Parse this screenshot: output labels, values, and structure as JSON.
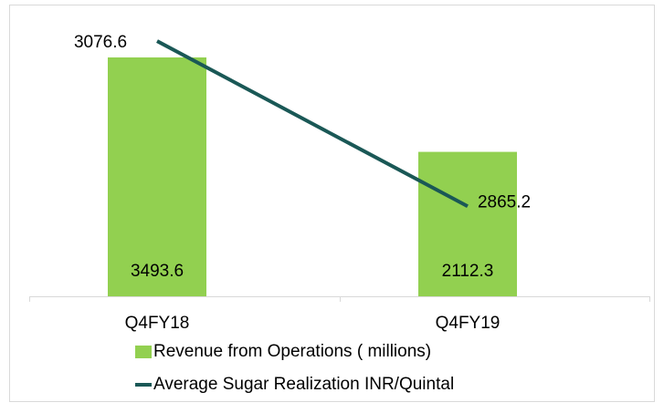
{
  "chart_data": {
    "type": "bar",
    "categories": [
      "Q4FY18",
      "Q4FY19"
    ],
    "series": [
      {
        "name": "Revenue from Operations ( millions)",
        "type": "bar",
        "color": "#92d050",
        "values": [
          3493.6,
          2112.3
        ]
      },
      {
        "name": "Average Sugar Realization INR/Quintal",
        "type": "line",
        "axis": "y2",
        "color": "#1a5856",
        "values": [
          3076.6,
          2865.2
        ]
      }
    ],
    "ylim": [
      0,
      4000
    ],
    "y2lim": [
      2750,
      3100
    ],
    "legend": "bottom"
  }
}
